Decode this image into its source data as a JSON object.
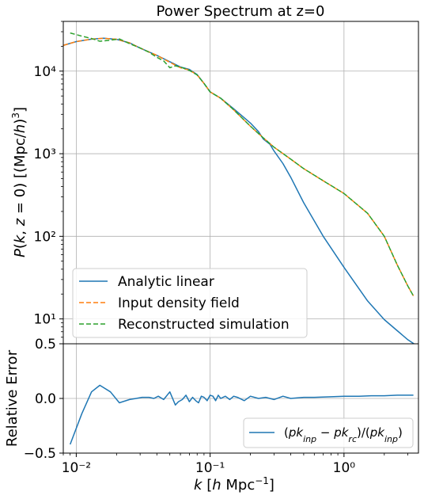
{
  "chart_data": [
    {
      "type": "line",
      "title": "Power Spectrum at z=0",
      "xlabel": "k [h Mpc⁻¹]",
      "ylabel": "P(k, z = 0) [(Mpc/h)³]",
      "xscale": "log",
      "yscale": "log",
      "xlim": [
        0.008,
        3.6
      ],
      "ylim": [
        5,
        40000
      ],
      "grid": true,
      "legend_location": "lower-left",
      "x_tick_labels": [
        "10⁻²",
        "10⁻¹",
        "10⁰"
      ],
      "y_tick_labels": [
        "10¹",
        "10²",
        "10³",
        "10⁴"
      ],
      "series": [
        {
          "name": "Analytic linear",
          "color": "#1f77b4",
          "dash": "solid",
          "x": [
            0.008,
            0.01,
            0.013,
            0.016,
            0.02,
            0.025,
            0.03,
            0.04,
            0.05,
            0.06,
            0.07,
            0.08,
            0.09,
            0.1,
            0.12,
            0.15,
            0.18,
            0.2,
            0.23,
            0.25,
            0.28,
            0.3,
            0.35,
            0.4,
            0.5,
            0.7,
            1.0,
            1.5,
            2.0,
            2.5,
            3.0,
            3.6
          ],
          "y": [
            20500,
            22800,
            24400,
            25000,
            24300,
            22000,
            19000,
            15500,
            13000,
            11200,
            10500,
            9100,
            7100,
            5600,
            4700,
            3500,
            2720,
            2350,
            1850,
            1500,
            1300,
            1080,
            760,
            520,
            255,
            100,
            42,
            16.5,
            9.8,
            7.2,
            5.6,
            4.6
          ]
        },
        {
          "name": "Input density field",
          "color": "#ff7f0e",
          "dash": "dashed",
          "x": [
            0.008,
            0.01,
            0.013,
            0.016,
            0.02,
            0.025,
            0.03,
            0.04,
            0.05,
            0.06,
            0.07,
            0.08,
            0.09,
            0.1,
            0.12,
            0.15,
            0.2,
            0.25,
            0.3,
            0.4,
            0.5,
            0.7,
            1.0,
            1.5,
            2.0,
            2.5,
            3.0,
            3.3
          ],
          "y": [
            20500,
            22800,
            24400,
            25000,
            24300,
            22000,
            19000,
            15500,
            12800,
            11000,
            10300,
            9000,
            7100,
            5600,
            4700,
            3400,
            2150,
            1550,
            1200,
            860,
            660,
            470,
            330,
            190,
            100,
            45,
            25,
            19
          ]
        },
        {
          "name": "Reconstructed simulation",
          "color": "#2ca02c",
          "dash": "dashed",
          "x": [
            0.009,
            0.011,
            0.013,
            0.015,
            0.018,
            0.021,
            0.025,
            0.03,
            0.035,
            0.04,
            0.045,
            0.05,
            0.055,
            0.06,
            0.07,
            0.08,
            0.09,
            0.1,
            0.12,
            0.15,
            0.2,
            0.25,
            0.3,
            0.4,
            0.5,
            0.7,
            1.0,
            1.5,
            2.0,
            2.5,
            3.0,
            3.3
          ],
          "y": [
            29000,
            26500,
            24800,
            23000,
            23700,
            24500,
            21500,
            19100,
            16900,
            14700,
            13300,
            11000,
            11600,
            11200,
            10200,
            9000,
            7100,
            5600,
            4700,
            3400,
            2150,
            1550,
            1200,
            860,
            660,
            470,
            330,
            190,
            100,
            45,
            25,
            19
          ]
        }
      ]
    },
    {
      "type": "line",
      "title": "",
      "xlabel": "k [h Mpc⁻¹]",
      "ylabel": "Relative Error",
      "xscale": "log",
      "xlim": [
        0.008,
        3.6
      ],
      "ylim": [
        -0.5,
        0.5
      ],
      "grid": true,
      "legend_location": "lower-right",
      "x_tick_labels": [
        "10⁻²",
        "10⁻¹",
        "10⁰"
      ],
      "y_tick_labels": [
        "−0.5",
        "0.0",
        "0.5"
      ],
      "series": [
        {
          "name": "(pk_inp − pk_rc)/(pk_inp)",
          "color": "#1f77b4",
          "dash": "solid",
          "x": [
            0.009,
            0.011,
            0.013,
            0.015,
            0.018,
            0.021,
            0.025,
            0.028,
            0.031,
            0.035,
            0.038,
            0.041,
            0.045,
            0.05,
            0.055,
            0.058,
            0.062,
            0.066,
            0.07,
            0.074,
            0.078,
            0.082,
            0.086,
            0.09,
            0.095,
            0.1,
            0.105,
            0.11,
            0.115,
            0.12,
            0.13,
            0.14,
            0.15,
            0.16,
            0.18,
            0.2,
            0.23,
            0.26,
            0.3,
            0.35,
            0.4,
            0.5,
            0.6,
            0.8,
            1.0,
            1.3,
            1.6,
            2.0,
            2.5,
            3.0,
            3.3
          ],
          "y": [
            -0.42,
            -0.14,
            0.06,
            0.12,
            0.06,
            -0.04,
            -0.01,
            0.0,
            0.01,
            0.01,
            0.0,
            0.02,
            -0.01,
            0.06,
            -0.06,
            -0.03,
            -0.01,
            0.03,
            -0.03,
            0.01,
            -0.02,
            -0.04,
            0.02,
            0.01,
            -0.02,
            0.03,
            0.02,
            -0.02,
            0.03,
            0.0,
            0.02,
            -0.01,
            0.02,
            0.01,
            -0.02,
            0.02,
            0.0,
            0.01,
            -0.01,
            0.02,
            0.0,
            0.01,
            0.01,
            0.015,
            0.02,
            0.02,
            0.025,
            0.025,
            0.03,
            0.03,
            0.03
          ]
        }
      ]
    }
  ]
}
